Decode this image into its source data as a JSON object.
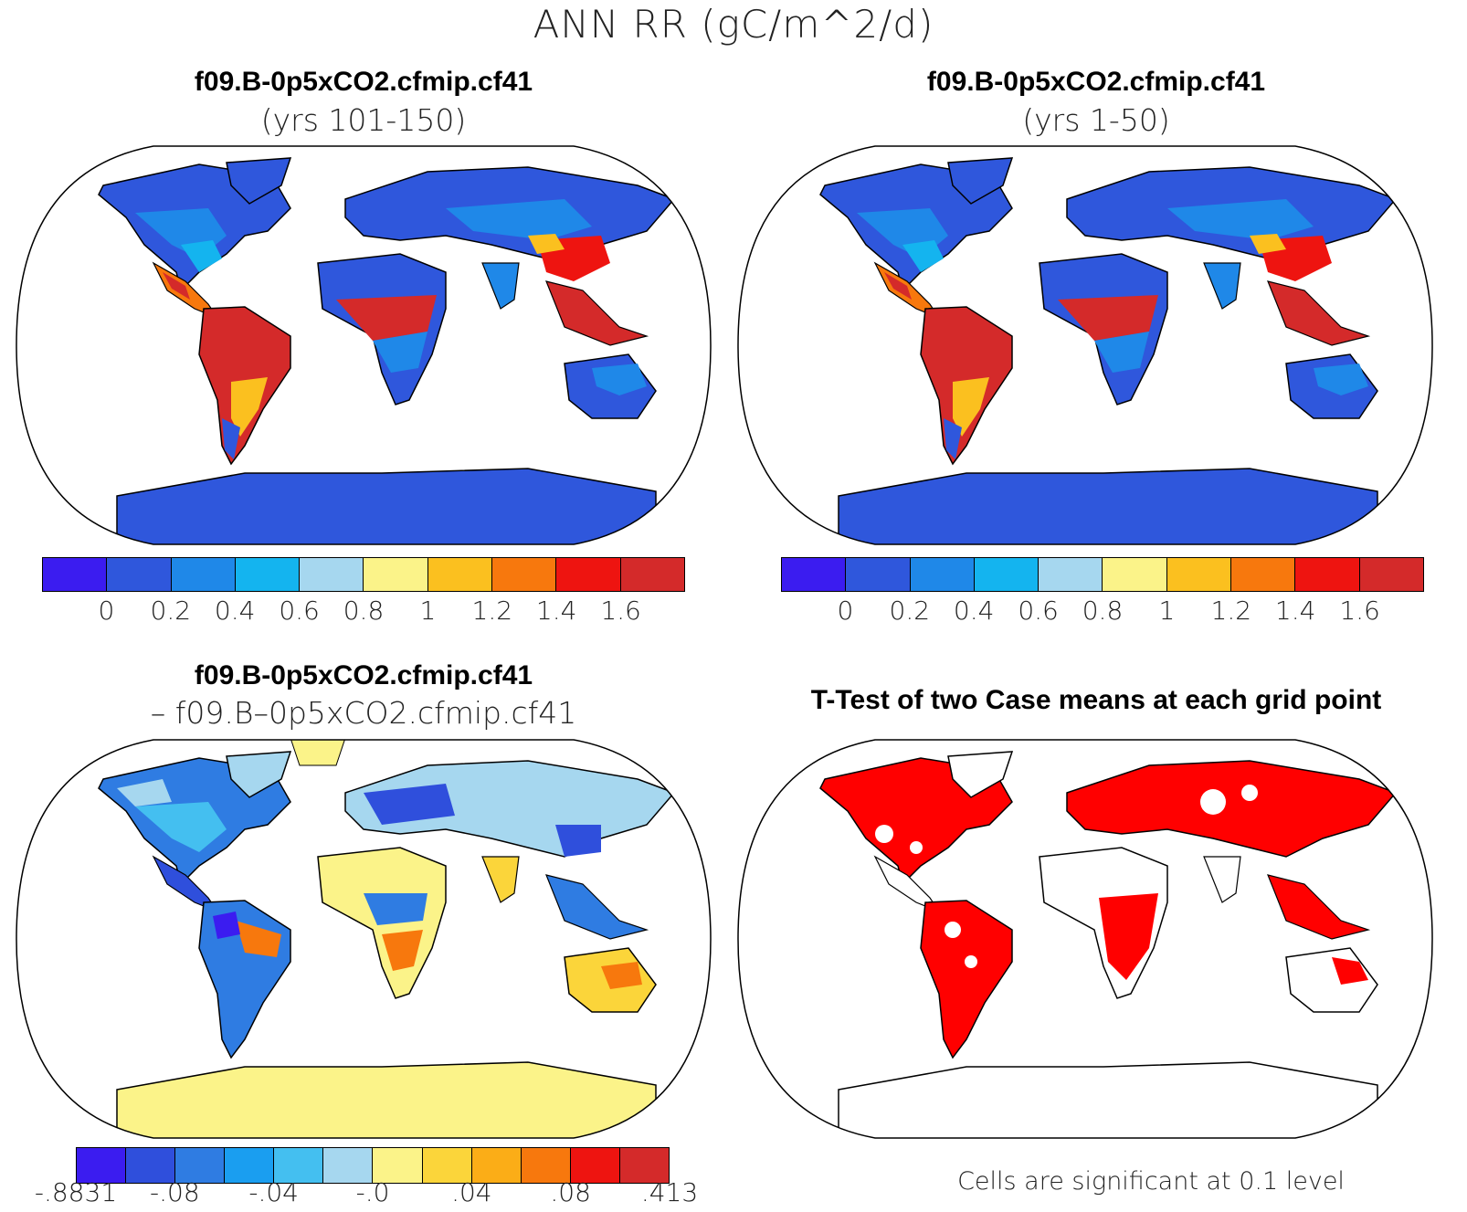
{
  "title": "ANN RR (gC/m^2/d)",
  "panels": {
    "top_left": {
      "title": "f09.B-0p5xCO2.cfmip.cf41",
      "subtitle": "(yrs 101-150)"
    },
    "top_right": {
      "title": "f09.B-0p5xCO2.cfmip.cf41",
      "subtitle": "(yrs 1-50)"
    },
    "bottom_left": {
      "title": "f09.B-0p5xCO2.cfmip.cf41",
      "subtitle": "– f09.B–0p5xCO2.cfmip.cf41"
    },
    "bottom_right": {
      "title": "T-Test of two Case means at each grid point",
      "note": "Cells are significant at 0.1 level"
    }
  },
  "colorbars": {
    "absolute": {
      "colors": [
        "#3b1cf0",
        "#2f57dc",
        "#1f88e8",
        "#14b4ef",
        "#a6d7ef",
        "#fbf389",
        "#fbc01f",
        "#f7780d",
        "#ee1410",
        "#d42a2a"
      ],
      "labels": [
        "0",
        "0.2",
        "0.4",
        "0.6",
        "0.8",
        "1",
        "1.2",
        "1.4",
        "1.6"
      ]
    },
    "difference": {
      "colors": [
        "#3b1cf0",
        "#2f4fdc",
        "#2f7ce2",
        "#1a9ef0",
        "#44bff0",
        "#a6d7ef",
        "#fbf389",
        "#fbd53a",
        "#fbad17",
        "#f7780d",
        "#ee1410",
        "#d42a2a"
      ],
      "labels": [
        "-.8831",
        "-.08",
        "-.04",
        "-.0",
        ".04",
        ".08",
        ".413"
      ]
    }
  },
  "colors": {
    "land_low": "#2f57dc",
    "land_mid": "#1f88e8",
    "tropics": "#d42a2a",
    "warm": "#fbc01f",
    "diff_neutral": "#fbf389",
    "diff_neg": "#a6d7ef",
    "significant": "#ff0000"
  }
}
